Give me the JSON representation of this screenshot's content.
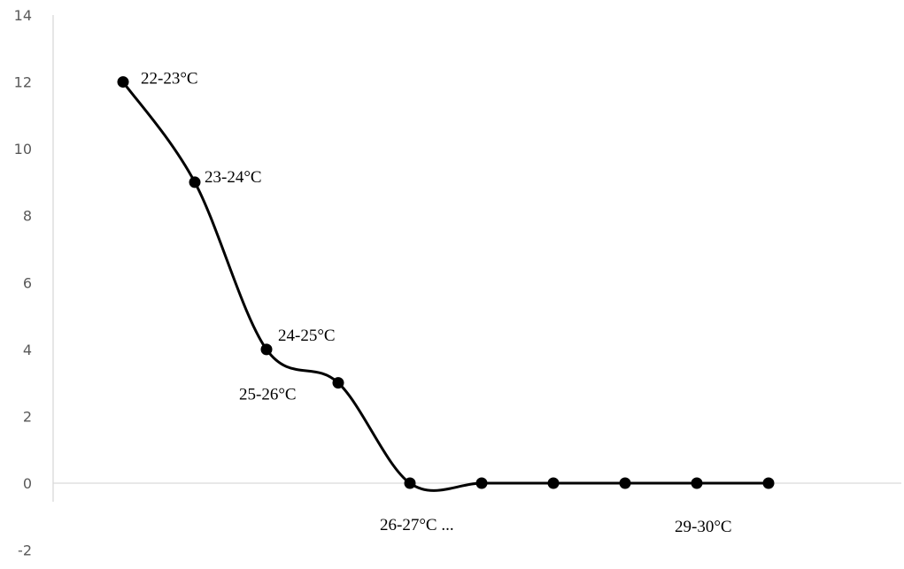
{
  "chart_data": {
    "type": "line",
    "title": "",
    "xlabel": "",
    "ylabel": "",
    "x": [
      1,
      2,
      3,
      4,
      5,
      6,
      7,
      8,
      9,
      10
    ],
    "series": [
      {
        "values": [
          12,
          9,
          4,
          3,
          0,
          0,
          0,
          0,
          0,
          0
        ],
        "color": "#000000",
        "smooth": true,
        "marker": "circle"
      }
    ],
    "point_labels": [
      "22-23°C",
      "23-24°C",
      "24-25°C",
      "25-26°C",
      "26-27°C ...",
      "",
      "",
      "",
      "29-30°C",
      ""
    ],
    "yticks": [
      "14",
      "12",
      "10",
      "8",
      "6",
      "4",
      "2",
      "0",
      "-2"
    ],
    "ylim": [
      -2,
      14
    ],
    "grid": false,
    "legend": "none"
  }
}
